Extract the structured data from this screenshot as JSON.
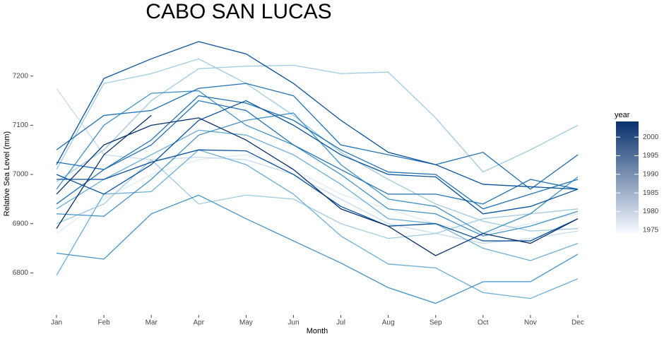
{
  "chart_data": {
    "type": "line",
    "title": "CABO SAN LUCAS",
    "x_label": "Month",
    "y_label": "Relative Sea Level (mm)",
    "categories": [
      "Jan",
      "Feb",
      "Mar",
      "Apr",
      "May",
      "Jun",
      "Jul",
      "Aug",
      "Sep",
      "Oct",
      "Nov",
      "Dec"
    ],
    "ylim": [
      6723,
      7290
    ],
    "yticks": [
      6800,
      6900,
      7000,
      7100,
      7200
    ],
    "grid": false,
    "legend": {
      "title": "year",
      "lim": [
        1974.2,
        2004.2
      ],
      "ticks": [
        1975,
        1980,
        1985,
        1990,
        1995,
        2000
      ],
      "colors": [
        "#f7fbff",
        "#08306b"
      ]
    },
    "series": [
      {
        "color": "#deebf7",
        "values": [
          6880,
          6950,
          7000,
          7030,
          7040,
          7010,
          6960,
          6930,
          6900,
          6880,
          6900,
          6920
        ]
      },
      {
        "color": "#c6dbef",
        "values": [
          7175,
          7040,
          7030,
          7035,
          7030,
          7000,
          6950,
          6900,
          6880,
          6860,
          6870,
          6885
        ]
      },
      {
        "color": "#9ecae1",
        "values": [
          6900,
          6940,
          7030,
          6940,
          6958,
          6950,
          6900,
          6870,
          6880,
          6910,
          6920,
          6930
        ]
      },
      {
        "color": "#9ecae1",
        "values": [
          7010,
          7185,
          7205,
          7235,
          7185,
          7120,
          7045,
          6990,
          6940,
          6905,
          6885,
          6890
        ]
      },
      {
        "color": "#9ecae1",
        "values": [
          6985,
          7050,
          7150,
          7215,
          7220,
          7222,
          7205,
          7208,
          7115,
          7005,
          7050,
          7100
        ]
      },
      {
        "color": "#6baed6",
        "values": [
          6930,
          6990,
          7040,
          7090,
          7080,
          7040,
          6980,
          6910,
          6900,
          6850,
          6825,
          6860
        ]
      },
      {
        "color": "#6baed6",
        "values": [
          6795,
          6960,
          6965,
          7050,
          7020,
          6960,
          6875,
          6818,
          6810,
          6760,
          6748,
          6788
        ]
      },
      {
        "color": "#4292c6",
        "values": [
          6840,
          6828,
          6920,
          6958,
          6910,
          6865,
          6820,
          6770,
          6738,
          6782,
          6782,
          6838
        ]
      },
      {
        "color": "#4292c6",
        "values": [
          6920,
          6915,
          6990,
          7080,
          7110,
          7125,
          7020,
          6950,
          6935,
          6880,
          6920,
          6995
        ]
      },
      {
        "color": "#4292c6",
        "values": [
          6970,
          7100,
          7165,
          7170,
          7100,
          7060,
          7000,
          6930,
          6920,
          6875,
          6895,
          6925
        ]
      },
      {
        "color": "#2171b5",
        "values": [
          7050,
          7120,
          7130,
          7175,
          7185,
          7160,
          7060,
          7040,
          7020,
          7045,
          6970,
          7040
        ]
      },
      {
        "color": "#2171b5",
        "values": [
          6940,
          7010,
          7060,
          7150,
          7130,
          7060,
          7010,
          6960,
          6960,
          6940,
          6990,
          6970
        ]
      },
      {
        "color": "#2171b5",
        "values": [
          7025,
          7010,
          7070,
          7160,
          7145,
          7110,
          7050,
          7005,
          7000,
          6930,
          6960,
          6990
        ]
      },
      {
        "color": "#08519c",
        "values": [
          7020,
          7195,
          7235,
          7270,
          7245,
          7185,
          7110,
          7045,
          7020,
          6980,
          6975,
          6970
        ]
      },
      {
        "color": "#08519c",
        "values": [
          7000,
          6960,
          7020,
          7110,
          7150,
          7100,
          7040,
          7000,
          6995,
          6920,
          6935,
          6970
        ]
      },
      {
        "color": "#08519c",
        "values": [
          6990,
          6990,
          7025,
          7050,
          7048,
          7000,
          6935,
          6895,
          6900,
          6865,
          6865,
          6910
        ]
      },
      {
        "color": "#08306b",
        "values": [
          6960,
          7060,
          7100,
          7115,
          7070,
          7010,
          6930,
          6895,
          6835,
          6880,
          6860,
          6910
        ]
      },
      {
        "color": "#08306b",
        "values": [
          6890,
          7040,
          7120,
          null,
          null,
          null,
          null,
          null,
          null,
          null,
          null,
          null
        ]
      }
    ]
  }
}
